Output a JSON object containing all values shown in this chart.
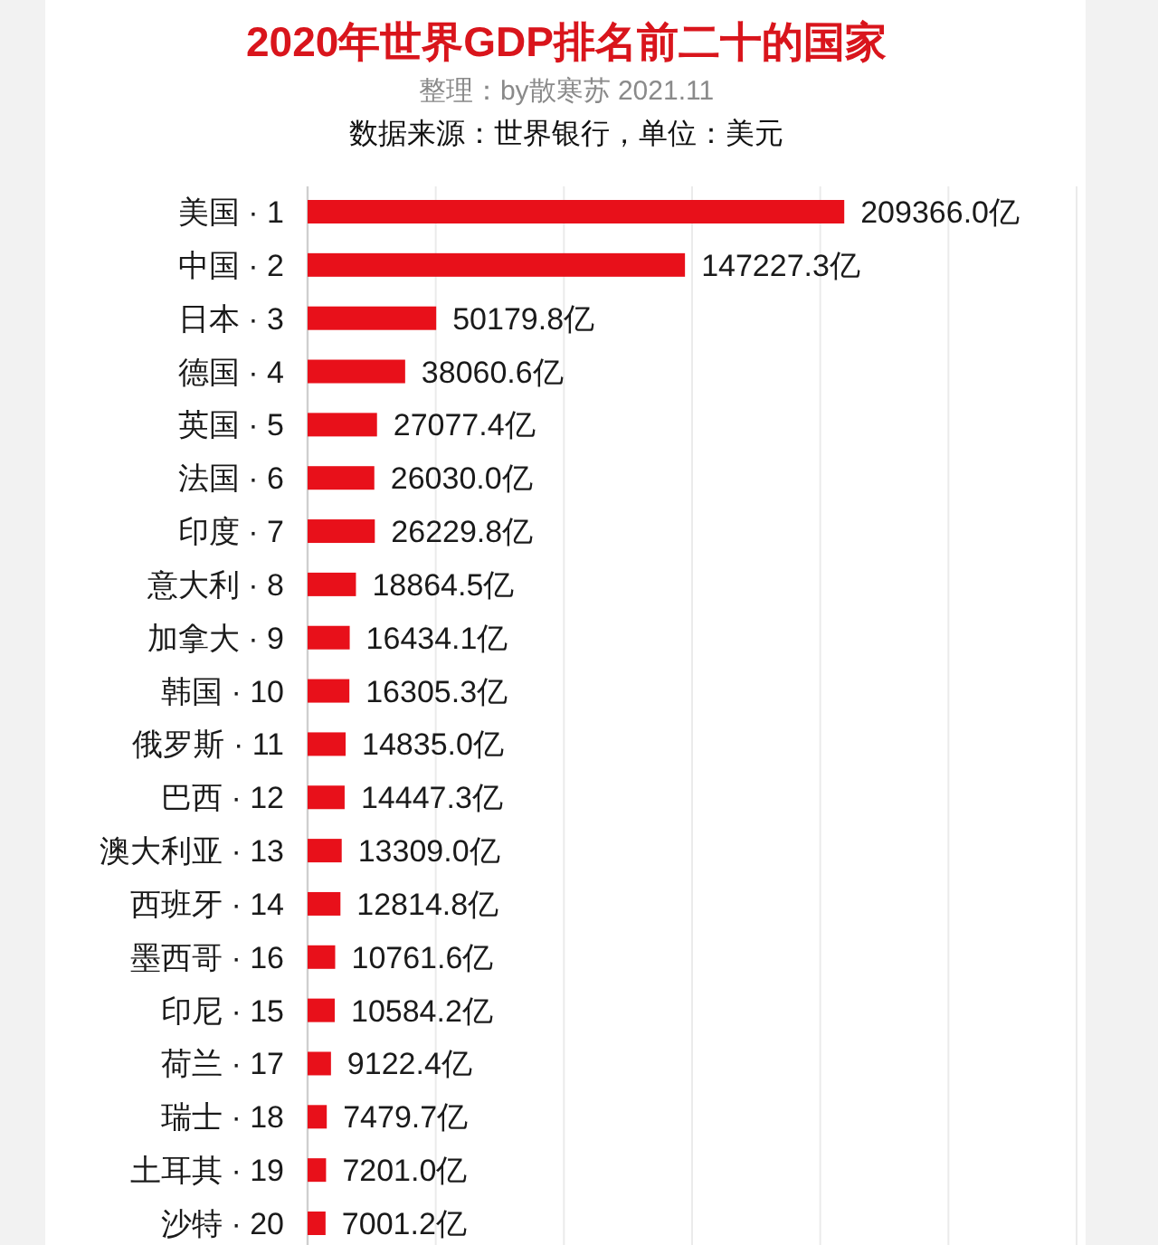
{
  "chart_data": {
    "type": "bar",
    "orientation": "horizontal",
    "title": "2020年世界GDP排名前二十的国家",
    "subtitle": "整理：by散寒苏 2021.11",
    "annotations": [
      "数据来源：世界银行，单位：美元"
    ],
    "categories": [
      "美国 · 1",
      "中国 · 2",
      "日本 · 3",
      "德国 · 4",
      "英国 · 5",
      "法国 · 6",
      "印度 · 7",
      "意大利 · 8",
      "加拿大 · 9",
      "韩国 · 10",
      "俄罗斯 · 11",
      "巴西 · 12",
      "澳大利亚 · 13",
      "西班牙 · 14",
      "墨西哥 · 16",
      "印尼 · 15",
      "荷兰 · 17",
      "瑞士 · 18",
      "土耳其 · 19",
      "沙特 · 20"
    ],
    "values": [
      209366.0,
      147227.3,
      50179.8,
      38060.6,
      27077.4,
      26030.0,
      26229.8,
      18864.5,
      16434.1,
      16305.3,
      14835.0,
      14447.3,
      13309.0,
      12814.8,
      10761.6,
      10584.2,
      9122.4,
      7479.7,
      7201.0,
      7001.2
    ],
    "value_labels": [
      "209366.0亿",
      "147227.3亿",
      "50179.8亿",
      "38060.6亿",
      "27077.4亿",
      "26030.0亿",
      "26229.8亿",
      "18864.5亿",
      "16434.1亿",
      "16305.3亿",
      "14835.0亿",
      "14447.3亿",
      "13309.0亿",
      "12814.8亿",
      "10761.6亿",
      "10584.2亿",
      "9122.4亿",
      "7479.7亿",
      "7201.0亿",
      "7001.2亿"
    ],
    "color": "#e8101a",
    "xlim": [
      0,
      300000
    ],
    "xticks": [
      {
        "value": 0,
        "label": null
      },
      {
        "value": 50000,
        "label": null
      },
      {
        "value": 100000,
        "label": null
      },
      {
        "value": 150000,
        "label": null
      },
      {
        "value": 200000,
        "label": null
      },
      {
        "value": 250000,
        "label": null
      },
      {
        "value": 300000,
        "label": null
      }
    ],
    "grid": "x",
    "tick_labels": "y"
  }
}
